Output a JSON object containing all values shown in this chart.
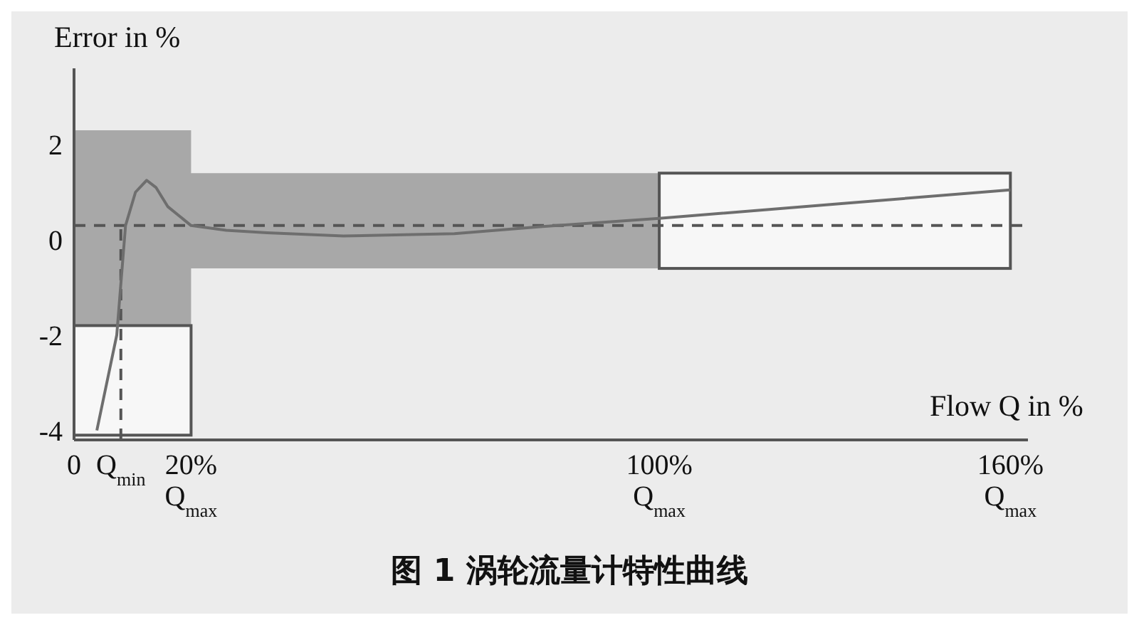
{
  "chart_data": {
    "type": "line",
    "title": "图 1 涡轮流量计特性曲线",
    "xlabel": "Flow Q in %",
    "ylabel": "Error in %",
    "marker": "none",
    "xlim": [
      0,
      163
    ],
    "ylim": [
      -4.2,
      3.6
    ],
    "xticks": [
      0,
      {
        "value": 8,
        "label": "Q$_{min}$"
      },
      {
        "value": 20,
        "label": "20%\nQ$_{max}$"
      },
      {
        "value": 100,
        "label": "100%\nQ$_{max}$"
      },
      {
        "value": 160,
        "label": "160%\nQ$_{max}$"
      }
    ],
    "yticks": [
      -4,
      -2,
      0,
      2
    ],
    "ref_lines": [
      {
        "axis": "y",
        "value": 0.3,
        "line_style": "dashed",
        "color": "#555555"
      }
    ],
    "series": [
      {
        "type": "area",
        "color": "#a8a8a8",
        "x": [
          0,
          20,
          20,
          100
        ],
        "lower": [
          -1.8,
          -1.8,
          -0.6,
          -0.6
        ],
        "upper": [
          2.3,
          2.3,
          1.4,
          1.4
        ],
        "values": [
          null,
          null,
          null,
          null
        ]
      },
      {
        "type": "area",
        "color": "#f7f7f7",
        "x": [
          0,
          20
        ],
        "lower": [
          -4.1,
          -4.1
        ],
        "upper": [
          -1.8,
          -1.8
        ],
        "values": [
          null,
          null
        ]
      },
      {
        "type": "area",
        "color": "#f7f7f7",
        "x": [
          100,
          160
        ],
        "lower": [
          -0.6,
          -0.6
        ],
        "upper": [
          1.4,
          1.4
        ],
        "values": [
          null,
          null
        ]
      },
      {
        "color": "#555555",
        "line_style": "dashed",
        "x": [
          8,
          8
        ],
        "values": [
          -4.2,
          0.3
        ]
      },
      {
        "color": "#6e6e6e",
        "x": [
          3.9,
          7.3,
          8.8,
          10.5,
          12.4,
          14,
          16,
          20,
          26,
          33,
          46,
          65,
          80,
          100,
          130,
          160
        ],
        "values": [
          -4.0,
          -2,
          0.3,
          1.0,
          1.25,
          1.1,
          0.7,
          0.3,
          0.2,
          0.15,
          0.08,
          0.13,
          0.28,
          0.45,
          0.75,
          1.05
        ]
      }
    ]
  }
}
